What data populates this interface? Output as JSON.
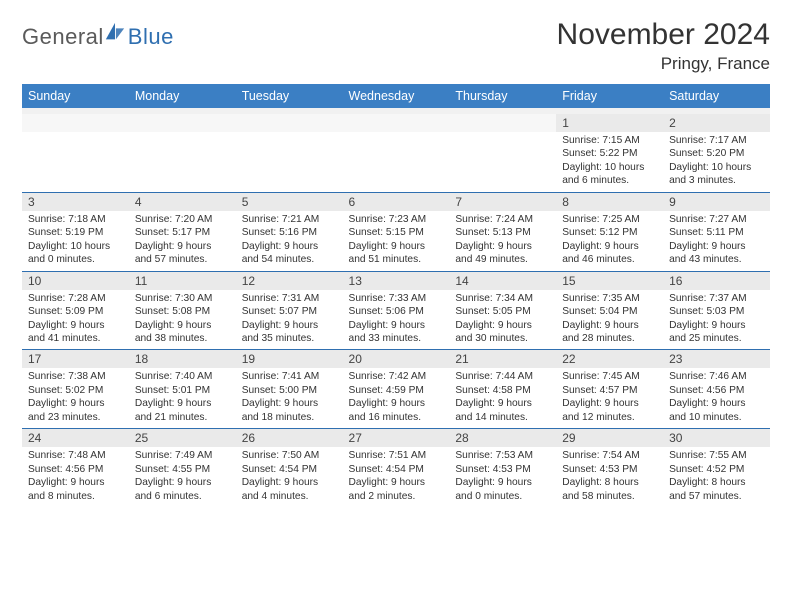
{
  "logo": {
    "general": "General",
    "blue": "Blue",
    "brand_color": "#2f6fb0"
  },
  "title": "November 2024",
  "location": "Pringy, France",
  "colors": {
    "header_bg": "#3b7fc4",
    "header_fg": "#ffffff",
    "daynum_bg": "#eaeaea",
    "row_border": "#2f6fb0",
    "text": "#333333"
  },
  "day_headers": [
    "Sunday",
    "Monday",
    "Tuesday",
    "Wednesday",
    "Thursday",
    "Friday",
    "Saturday"
  ],
  "weeks": [
    [
      null,
      null,
      null,
      null,
      null,
      {
        "num": "1",
        "sunrise": "Sunrise: 7:15 AM",
        "sunset": "Sunset: 5:22 PM",
        "daylight1": "Daylight: 10 hours",
        "daylight2": "and 6 minutes."
      },
      {
        "num": "2",
        "sunrise": "Sunrise: 7:17 AM",
        "sunset": "Sunset: 5:20 PM",
        "daylight1": "Daylight: 10 hours",
        "daylight2": "and 3 minutes."
      }
    ],
    [
      {
        "num": "3",
        "sunrise": "Sunrise: 7:18 AM",
        "sunset": "Sunset: 5:19 PM",
        "daylight1": "Daylight: 10 hours",
        "daylight2": "and 0 minutes."
      },
      {
        "num": "4",
        "sunrise": "Sunrise: 7:20 AM",
        "sunset": "Sunset: 5:17 PM",
        "daylight1": "Daylight: 9 hours",
        "daylight2": "and 57 minutes."
      },
      {
        "num": "5",
        "sunrise": "Sunrise: 7:21 AM",
        "sunset": "Sunset: 5:16 PM",
        "daylight1": "Daylight: 9 hours",
        "daylight2": "and 54 minutes."
      },
      {
        "num": "6",
        "sunrise": "Sunrise: 7:23 AM",
        "sunset": "Sunset: 5:15 PM",
        "daylight1": "Daylight: 9 hours",
        "daylight2": "and 51 minutes."
      },
      {
        "num": "7",
        "sunrise": "Sunrise: 7:24 AM",
        "sunset": "Sunset: 5:13 PM",
        "daylight1": "Daylight: 9 hours",
        "daylight2": "and 49 minutes."
      },
      {
        "num": "8",
        "sunrise": "Sunrise: 7:25 AM",
        "sunset": "Sunset: 5:12 PM",
        "daylight1": "Daylight: 9 hours",
        "daylight2": "and 46 minutes."
      },
      {
        "num": "9",
        "sunrise": "Sunrise: 7:27 AM",
        "sunset": "Sunset: 5:11 PM",
        "daylight1": "Daylight: 9 hours",
        "daylight2": "and 43 minutes."
      }
    ],
    [
      {
        "num": "10",
        "sunrise": "Sunrise: 7:28 AM",
        "sunset": "Sunset: 5:09 PM",
        "daylight1": "Daylight: 9 hours",
        "daylight2": "and 41 minutes."
      },
      {
        "num": "11",
        "sunrise": "Sunrise: 7:30 AM",
        "sunset": "Sunset: 5:08 PM",
        "daylight1": "Daylight: 9 hours",
        "daylight2": "and 38 minutes."
      },
      {
        "num": "12",
        "sunrise": "Sunrise: 7:31 AM",
        "sunset": "Sunset: 5:07 PM",
        "daylight1": "Daylight: 9 hours",
        "daylight2": "and 35 minutes."
      },
      {
        "num": "13",
        "sunrise": "Sunrise: 7:33 AM",
        "sunset": "Sunset: 5:06 PM",
        "daylight1": "Daylight: 9 hours",
        "daylight2": "and 33 minutes."
      },
      {
        "num": "14",
        "sunrise": "Sunrise: 7:34 AM",
        "sunset": "Sunset: 5:05 PM",
        "daylight1": "Daylight: 9 hours",
        "daylight2": "and 30 minutes."
      },
      {
        "num": "15",
        "sunrise": "Sunrise: 7:35 AM",
        "sunset": "Sunset: 5:04 PM",
        "daylight1": "Daylight: 9 hours",
        "daylight2": "and 28 minutes."
      },
      {
        "num": "16",
        "sunrise": "Sunrise: 7:37 AM",
        "sunset": "Sunset: 5:03 PM",
        "daylight1": "Daylight: 9 hours",
        "daylight2": "and 25 minutes."
      }
    ],
    [
      {
        "num": "17",
        "sunrise": "Sunrise: 7:38 AM",
        "sunset": "Sunset: 5:02 PM",
        "daylight1": "Daylight: 9 hours",
        "daylight2": "and 23 minutes."
      },
      {
        "num": "18",
        "sunrise": "Sunrise: 7:40 AM",
        "sunset": "Sunset: 5:01 PM",
        "daylight1": "Daylight: 9 hours",
        "daylight2": "and 21 minutes."
      },
      {
        "num": "19",
        "sunrise": "Sunrise: 7:41 AM",
        "sunset": "Sunset: 5:00 PM",
        "daylight1": "Daylight: 9 hours",
        "daylight2": "and 18 minutes."
      },
      {
        "num": "20",
        "sunrise": "Sunrise: 7:42 AM",
        "sunset": "Sunset: 4:59 PM",
        "daylight1": "Daylight: 9 hours",
        "daylight2": "and 16 minutes."
      },
      {
        "num": "21",
        "sunrise": "Sunrise: 7:44 AM",
        "sunset": "Sunset: 4:58 PM",
        "daylight1": "Daylight: 9 hours",
        "daylight2": "and 14 minutes."
      },
      {
        "num": "22",
        "sunrise": "Sunrise: 7:45 AM",
        "sunset": "Sunset: 4:57 PM",
        "daylight1": "Daylight: 9 hours",
        "daylight2": "and 12 minutes."
      },
      {
        "num": "23",
        "sunrise": "Sunrise: 7:46 AM",
        "sunset": "Sunset: 4:56 PM",
        "daylight1": "Daylight: 9 hours",
        "daylight2": "and 10 minutes."
      }
    ],
    [
      {
        "num": "24",
        "sunrise": "Sunrise: 7:48 AM",
        "sunset": "Sunset: 4:56 PM",
        "daylight1": "Daylight: 9 hours",
        "daylight2": "and 8 minutes."
      },
      {
        "num": "25",
        "sunrise": "Sunrise: 7:49 AM",
        "sunset": "Sunset: 4:55 PM",
        "daylight1": "Daylight: 9 hours",
        "daylight2": "and 6 minutes."
      },
      {
        "num": "26",
        "sunrise": "Sunrise: 7:50 AM",
        "sunset": "Sunset: 4:54 PM",
        "daylight1": "Daylight: 9 hours",
        "daylight2": "and 4 minutes."
      },
      {
        "num": "27",
        "sunrise": "Sunrise: 7:51 AM",
        "sunset": "Sunset: 4:54 PM",
        "daylight1": "Daylight: 9 hours",
        "daylight2": "and 2 minutes."
      },
      {
        "num": "28",
        "sunrise": "Sunrise: 7:53 AM",
        "sunset": "Sunset: 4:53 PM",
        "daylight1": "Daylight: 9 hours",
        "daylight2": "and 0 minutes."
      },
      {
        "num": "29",
        "sunrise": "Sunrise: 7:54 AM",
        "sunset": "Sunset: 4:53 PM",
        "daylight1": "Daylight: 8 hours",
        "daylight2": "and 58 minutes."
      },
      {
        "num": "30",
        "sunrise": "Sunrise: 7:55 AM",
        "sunset": "Sunset: 4:52 PM",
        "daylight1": "Daylight: 8 hours",
        "daylight2": "and 57 minutes."
      }
    ]
  ]
}
